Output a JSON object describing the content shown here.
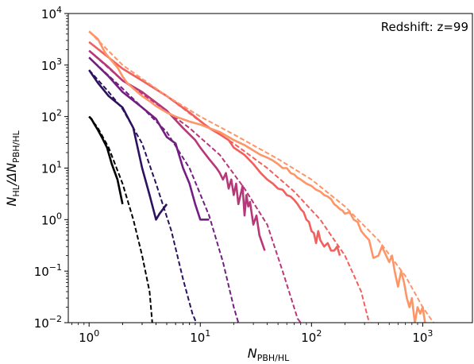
{
  "chart_data": {
    "type": "line",
    "xscale": "log",
    "yscale": "log",
    "xlim": [
      0.65,
      2800
    ],
    "ylim": [
      0.01,
      10000
    ],
    "xticks": [
      {
        "value": 1,
        "base": "10",
        "exp": "0"
      },
      {
        "value": 10,
        "base": "10",
        "exp": "1"
      },
      {
        "value": 100,
        "base": "10",
        "exp": "2"
      },
      {
        "value": 1000,
        "base": "10",
        "exp": "3"
      }
    ],
    "yticks": [
      {
        "value": 0.01,
        "base": "10",
        "exp": "−2"
      },
      {
        "value": 0.1,
        "base": "10",
        "exp": "−1"
      },
      {
        "value": 1,
        "base": "10",
        "exp": "0"
      },
      {
        "value": 10,
        "base": "10",
        "exp": "1"
      },
      {
        "value": 100,
        "base": "10",
        "exp": "2"
      },
      {
        "value": 1000,
        "base": "10",
        "exp": "3"
      },
      {
        "value": 10000,
        "base": "10",
        "exp": "4"
      }
    ],
    "xlabel": {
      "main": "N",
      "sub": "PBH/HL"
    },
    "ylabel": {
      "main": "N",
      "sub1": "HL",
      "mid": "/ΔN",
      "sub2": "PBH/HL"
    },
    "annotation": "Redshift: z=99",
    "series": [
      {
        "color": "#000004",
        "solid": [
          [
            1,
            100
          ],
          [
            1.05,
            90
          ],
          [
            1.1,
            75
          ],
          [
            1.2,
            55
          ],
          [
            1.3,
            40
          ],
          [
            1.45,
            25
          ],
          [
            1.6,
            12
          ],
          [
            1.8,
            6
          ],
          [
            2,
            2
          ]
        ],
        "dashed": [
          [
            1,
            100
          ],
          [
            1.2,
            60
          ],
          [
            1.5,
            25
          ],
          [
            2,
            5
          ],
          [
            2.5,
            1
          ],
          [
            3,
            0.2
          ],
          [
            3.5,
            0.04
          ],
          [
            3.7,
            0.01
          ]
        ]
      },
      {
        "color": "#2c115f",
        "solid": [
          [
            1,
            800
          ],
          [
            1.2,
            450
          ],
          [
            1.5,
            250
          ],
          [
            2,
            150
          ],
          [
            2.5,
            60
          ],
          [
            3,
            10
          ],
          [
            3.5,
            3
          ],
          [
            4,
            1
          ],
          [
            4.3,
            1.3
          ],
          [
            5,
            2
          ]
        ],
        "dashed": [
          [
            1,
            800
          ],
          [
            1.5,
            300
          ],
          [
            2,
            140
          ],
          [
            3,
            30
          ],
          [
            4,
            5
          ],
          [
            5.5,
            0.6
          ],
          [
            7,
            0.07
          ],
          [
            8.5,
            0.015
          ],
          [
            9.2,
            0.01
          ]
        ]
      },
      {
        "color": "#721f81",
        "solid": [
          [
            1,
            1400
          ],
          [
            1.5,
            600
          ],
          [
            2,
            300
          ],
          [
            3,
            150
          ],
          [
            4,
            90
          ],
          [
            5,
            40
          ],
          [
            6,
            30
          ],
          [
            7,
            10
          ],
          [
            8,
            5
          ],
          [
            9,
            2
          ],
          [
            10,
            1
          ],
          [
            12,
            1
          ]
        ],
        "dashed": [
          [
            1,
            1400
          ],
          [
            2,
            350
          ],
          [
            3,
            150
          ],
          [
            5,
            50
          ],
          [
            8,
            10
          ],
          [
            12,
            1.2
          ],
          [
            16,
            0.15
          ],
          [
            20,
            0.02
          ],
          [
            22,
            0.01
          ]
        ]
      },
      {
        "color": "#b73779",
        "solid": [
          [
            1,
            1900
          ],
          [
            1.5,
            900
          ],
          [
            2,
            500
          ],
          [
            3,
            300
          ],
          [
            5,
            130
          ],
          [
            7,
            60
          ],
          [
            9,
            35
          ],
          [
            10,
            25
          ],
          [
            12,
            15
          ],
          [
            14,
            10
          ],
          [
            15,
            8
          ],
          [
            16,
            6
          ],
          [
            17,
            8
          ],
          [
            18,
            4
          ],
          [
            19,
            6
          ],
          [
            20,
            3
          ],
          [
            21,
            5
          ],
          [
            22,
            2
          ],
          [
            23,
            3
          ],
          [
            24,
            4.5
          ],
          [
            25,
            1.2
          ],
          [
            26,
            3
          ],
          [
            27,
            1.8
          ],
          [
            28,
            2.2
          ],
          [
            30,
            0.8
          ],
          [
            32,
            1.2
          ],
          [
            34,
            0.5
          ],
          [
            36,
            0.35
          ],
          [
            38,
            0.25
          ]
        ],
        "dashed": [
          [
            1,
            1900
          ],
          [
            2,
            500
          ],
          [
            4,
            180
          ],
          [
            8,
            60
          ],
          [
            15,
            18
          ],
          [
            25,
            4
          ],
          [
            40,
            0.8
          ],
          [
            55,
            0.1
          ],
          [
            75,
            0.012
          ],
          [
            80,
            0.01
          ]
        ]
      },
      {
        "color": "#f1605d",
        "solid": [
          [
            1,
            2800
          ],
          [
            1.5,
            1400
          ],
          [
            2,
            850
          ],
          [
            3,
            500
          ],
          [
            5,
            250
          ],
          [
            8,
            120
          ],
          [
            12,
            60
          ],
          [
            15,
            45
          ],
          [
            18,
            35
          ],
          [
            20,
            25
          ],
          [
            25,
            18
          ],
          [
            30,
            12
          ],
          [
            35,
            8
          ],
          [
            40,
            6
          ],
          [
            45,
            5
          ],
          [
            50,
            4
          ],
          [
            55,
            3.8
          ],
          [
            60,
            3
          ],
          [
            65,
            2.8
          ],
          [
            70,
            2.4
          ],
          [
            75,
            2
          ],
          [
            80,
            1.6
          ],
          [
            85,
            1.4
          ],
          [
            90,
            1
          ],
          [
            95,
            0.9
          ],
          [
            100,
            0.6
          ],
          [
            105,
            0.55
          ],
          [
            110,
            0.35
          ],
          [
            115,
            0.6
          ],
          [
            120,
            0.4
          ],
          [
            130,
            0.3
          ],
          [
            140,
            0.35
          ],
          [
            150,
            0.25
          ],
          [
            160,
            0.25
          ],
          [
            170,
            0.3
          ],
          [
            180,
            0.2
          ]
        ],
        "dashed": [
          [
            1,
            2800
          ],
          [
            2,
            850
          ],
          [
            5,
            250
          ],
          [
            10,
            80
          ],
          [
            20,
            30
          ],
          [
            40,
            10
          ],
          [
            70,
            3.5
          ],
          [
            120,
            1
          ],
          [
            200,
            0.2
          ],
          [
            280,
            0.04
          ],
          [
            330,
            0.01
          ]
        ]
      },
      {
        "color": "#fd9567",
        "solid": [
          [
            1,
            4500
          ],
          [
            1.2,
            3200
          ],
          [
            1.4,
            1700
          ],
          [
            1.6,
            1200
          ],
          [
            1.8,
            900
          ],
          [
            2,
            600
          ],
          [
            2.2,
            450
          ],
          [
            2.5,
            350
          ],
          [
            3,
            250
          ],
          [
            3.5,
            200
          ],
          [
            4,
            160
          ],
          [
            5,
            120
          ],
          [
            6,
            100
          ],
          [
            8,
            80
          ],
          [
            10,
            70
          ],
          [
            12,
            60
          ],
          [
            15,
            50
          ],
          [
            18,
            40
          ],
          [
            20,
            35
          ],
          [
            25,
            28
          ],
          [
            30,
            22
          ],
          [
            35,
            18
          ],
          [
            40,
            16
          ],
          [
            45,
            14
          ],
          [
            50,
            12
          ],
          [
            55,
            10
          ],
          [
            60,
            10
          ],
          [
            65,
            8
          ],
          [
            70,
            7.5
          ],
          [
            75,
            6.5
          ],
          [
            80,
            6
          ],
          [
            90,
            5
          ],
          [
            100,
            4.5
          ],
          [
            110,
            3.8
          ],
          [
            120,
            3.5
          ],
          [
            130,
            3
          ],
          [
            140,
            2.8
          ],
          [
            150,
            2.5
          ],
          [
            160,
            2
          ],
          [
            170,
            1.8
          ],
          [
            180,
            1.6
          ],
          [
            190,
            1.5
          ],
          [
            200,
            1.3
          ],
          [
            220,
            1.4
          ],
          [
            240,
            1
          ],
          [
            260,
            0.9
          ],
          [
            280,
            0.6
          ],
          [
            300,
            0.5
          ],
          [
            330,
            0.4
          ],
          [
            360,
            0.18
          ],
          [
            400,
            0.2
          ],
          [
            430,
            0.3
          ],
          [
            460,
            0.22
          ],
          [
            500,
            0.15
          ],
          [
            530,
            0.2
          ],
          [
            560,
            0.1
          ],
          [
            600,
            0.05
          ],
          [
            640,
            0.1
          ],
          [
            680,
            0.06
          ],
          [
            720,
            0.03
          ],
          [
            760,
            0.02
          ],
          [
            800,
            0.03
          ],
          [
            850,
            0.01
          ],
          [
            900,
            0.02
          ],
          [
            950,
            0.015
          ],
          [
            1000,
            0.02
          ],
          [
            1050,
            0.01
          ]
        ],
        "dashed": [
          [
            1,
            4500
          ],
          [
            2,
            1000
          ],
          [
            5,
            250
          ],
          [
            10,
            100
          ],
          [
            20,
            45
          ],
          [
            50,
            15
          ],
          [
            100,
            6
          ],
          [
            200,
            1.8
          ],
          [
            400,
            0.4
          ],
          [
            700,
            0.08
          ],
          [
            1000,
            0.02
          ],
          [
            1250,
            0.01
          ]
        ]
      }
    ]
  }
}
